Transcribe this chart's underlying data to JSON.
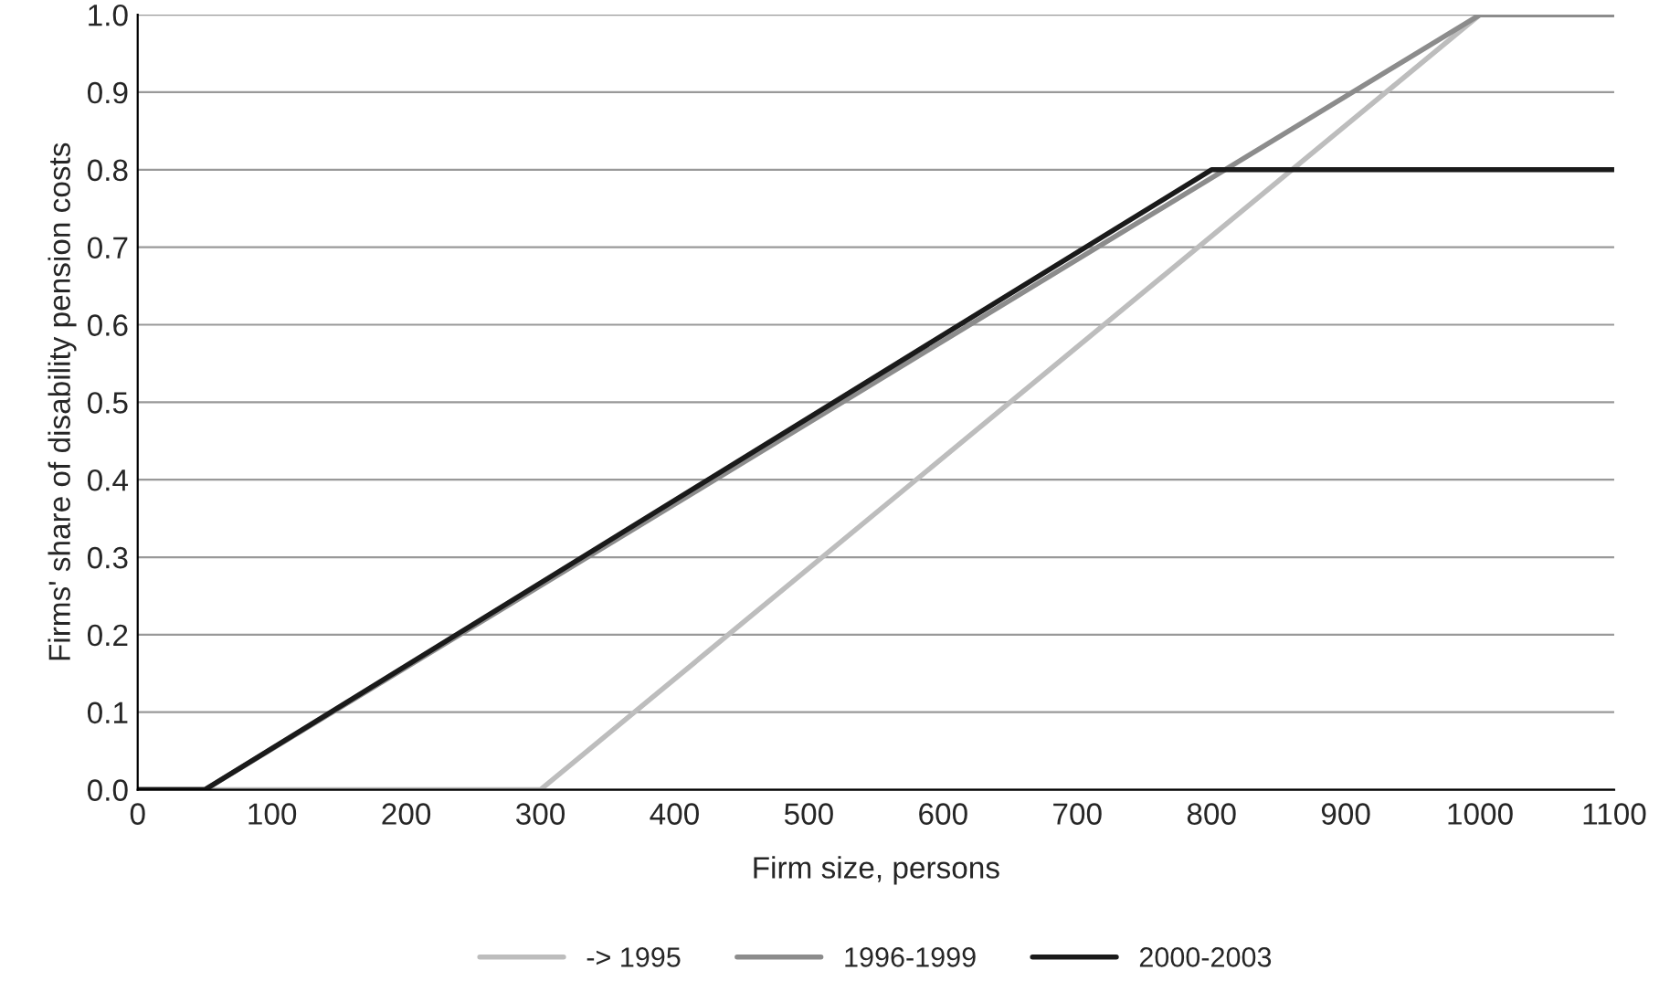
{
  "chart_data": {
    "type": "line",
    "xlabel": "Firm size, persons",
    "ylabel": "Firms' share of disability pension costs",
    "series": [
      {
        "name": "-> 1995",
        "color": "#bdbdbd",
        "x": [
          0,
          300,
          1000
        ],
        "values": [
          0,
          0,
          1
        ]
      },
      {
        "name": "1996-1999",
        "color": "#8c8c8c",
        "x": [
          0,
          50,
          1000,
          1100
        ],
        "values": [
          0,
          0,
          1,
          1
        ]
      },
      {
        "name": "2000-2003",
        "color": "#1a1a1a",
        "x": [
          0,
          50,
          800,
          1100
        ],
        "values": [
          0,
          0,
          0.8,
          0.8
        ]
      }
    ],
    "xlim": [
      0,
      1100
    ],
    "xticks": [
      0,
      100,
      200,
      300,
      400,
      500,
      600,
      700,
      800,
      900,
      1000,
      1100
    ],
    "ylim": [
      0,
      1
    ],
    "yticks": [
      {
        "value": 0,
        "label": "0.0"
      },
      {
        "value": 0.1,
        "label": "0.1"
      },
      {
        "value": 0.2,
        "label": "0.2"
      },
      {
        "value": 0.3,
        "label": "0.3"
      },
      {
        "value": 0.4,
        "label": "0.4"
      },
      {
        "value": 0.5,
        "label": "0.5"
      },
      {
        "value": 0.6,
        "label": "0.6"
      },
      {
        "value": 0.7,
        "label": "0.7"
      },
      {
        "value": 0.8,
        "label": "0.8"
      },
      {
        "value": 0.9,
        "label": "0.9"
      },
      {
        "value": 1,
        "label": "1.0"
      }
    ],
    "grid": "y",
    "legend": "bottom",
    "marker": "none",
    "line_style": "solid"
  }
}
